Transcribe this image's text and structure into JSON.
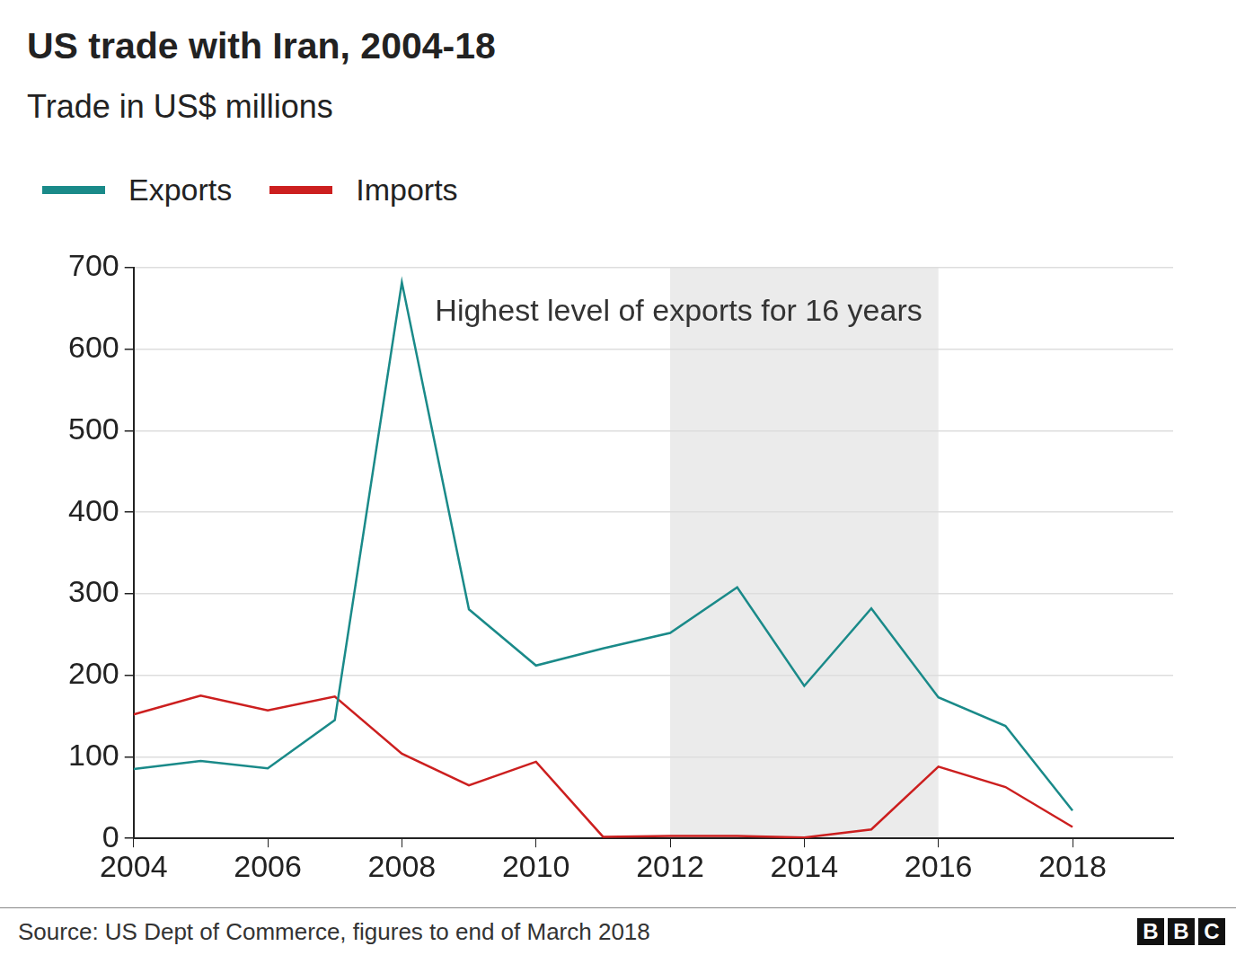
{
  "chart_data": {
    "type": "line",
    "title": "US trade with Iran, 2004-18",
    "subtitle": "Trade in US$ millions",
    "x": [
      2004,
      2005,
      2006,
      2007,
      2008,
      2009,
      2010,
      2011,
      2012,
      2013,
      2014,
      2015,
      2016,
      2017,
      2018
    ],
    "series": [
      {
        "name": "Exports",
        "color": "#1a8a89",
        "values": [
          85,
          95,
          86,
          145,
          682,
          281,
          212,
          233,
          252,
          308,
          187,
          282,
          173,
          138,
          34
        ]
      },
      {
        "name": "Imports",
        "color": "#cc1f1f",
        "values": [
          152,
          175,
          157,
          174,
          104,
          65,
          94,
          2,
          3,
          3,
          1,
          11,
          88,
          63,
          14
        ]
      }
    ],
    "xlim": [
      2004,
      2019.5
    ],
    "xticks": [
      2004,
      2006,
      2008,
      2010,
      2012,
      2014,
      2016,
      2018
    ],
    "ylim": [
      0,
      700
    ],
    "yticks": [
      0,
      100,
      200,
      300,
      400,
      500,
      600,
      700
    ],
    "grid": true,
    "annotations": [
      {
        "text": "Highest level of exports for 16 years",
        "x_start": 2012,
        "x_end": 2016
      }
    ],
    "source": "Source: US Dept of Commerce, figures to end of March 2018",
    "credit": "BBC"
  }
}
